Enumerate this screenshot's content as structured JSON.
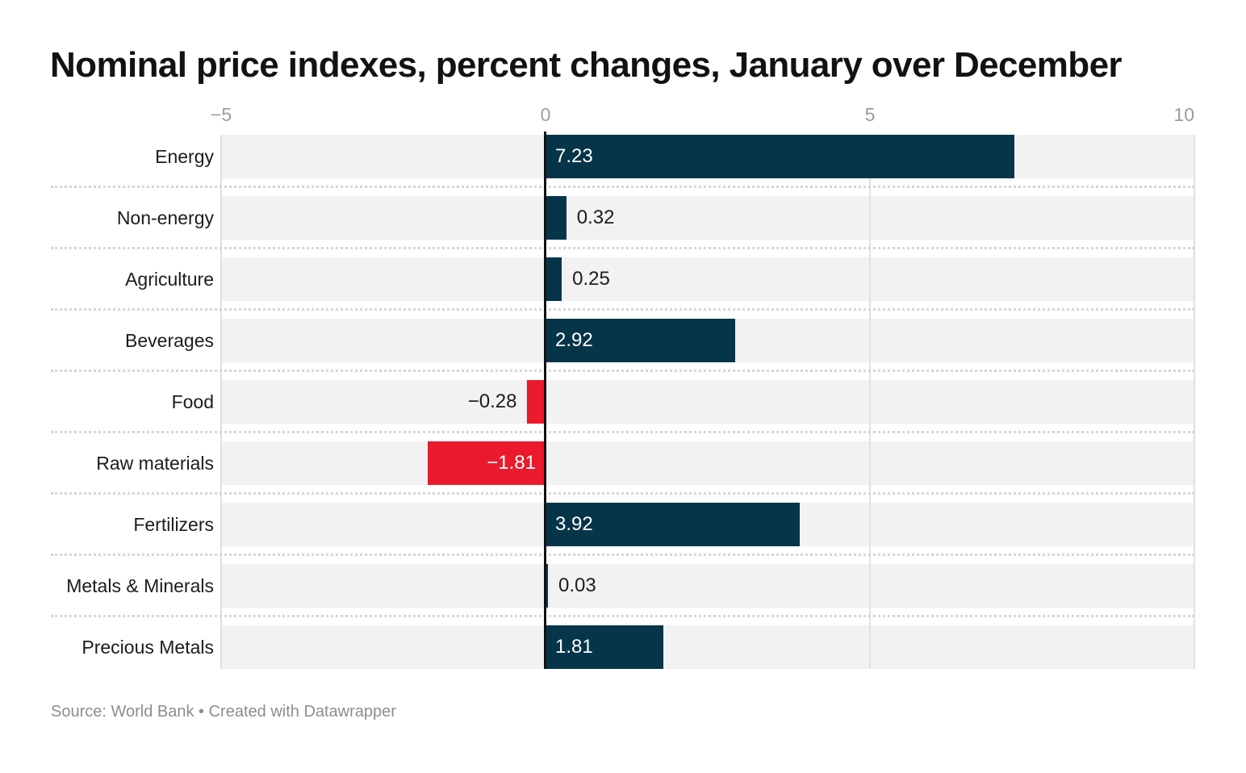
{
  "footer": {
    "text": "Source: World Bank • Created with Datawrapper"
  },
  "colors": {
    "positive_bar": "#06354a",
    "negative_bar": "#ea1a2c",
    "row_band": "#f2f2f2",
    "gridline": "#e0e0e0",
    "separator_dots": "#d6d6d6",
    "zero_line": "#111111",
    "axis_label": "#9c9c9c",
    "category_label": "#1c1c1c",
    "value_label_inside": "#ffffff",
    "value_label_outside": "#1c1c1c",
    "title": "#121212",
    "footer_text": "#8d8d8d"
  },
  "chart_data": {
    "type": "bar",
    "orientation": "horizontal",
    "title": "Nominal price indexes, percent changes, January over December",
    "categories": [
      "Energy",
      "Non-energy",
      "Agriculture",
      "Beverages",
      "Food",
      "Raw materials",
      "Fertilizers",
      "Metals & Minerals",
      "Precious Metals"
    ],
    "values": [
      7.23,
      0.32,
      0.25,
      2.92,
      -0.28,
      -1.81,
      3.92,
      0.03,
      1.81
    ],
    "value_labels": [
      "7.23",
      "0.32",
      "0.25",
      "2.92",
      "−0.28",
      "−1.81",
      "3.92",
      "0.03",
      "1.81"
    ],
    "x_axis": {
      "range": [
        -5,
        10
      ],
      "ticks": [
        -5,
        0,
        5,
        10
      ],
      "tick_labels": [
        "−5",
        "0",
        "5",
        "10"
      ]
    },
    "grid": true,
    "legend": "none",
    "baseline_value": 0
  }
}
